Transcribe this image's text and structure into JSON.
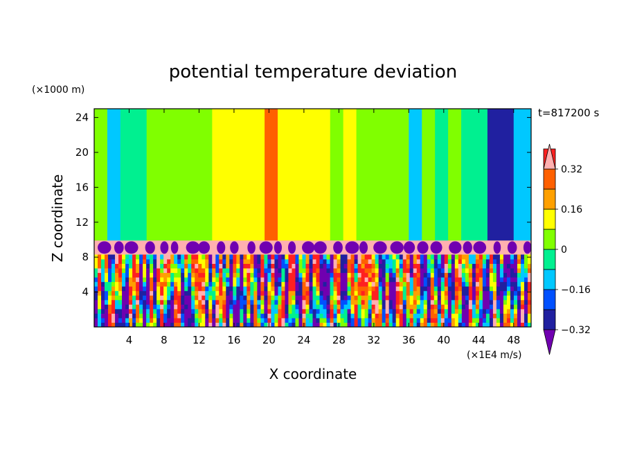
{
  "chart_data": {
    "type": "heatmap",
    "title": "potential temperature deviation",
    "xlabel": "X coordinate",
    "ylabel": "Z coordinate",
    "x_unit": "(×1E4 m/s)",
    "y_unit": "(×1000 m)",
    "time_label": "t=817200 s",
    "xlim": [
      0,
      50
    ],
    "ylim": [
      0,
      25
    ],
    "x_ticks": [
      4,
      8,
      12,
      16,
      20,
      24,
      28,
      32,
      36,
      40,
      44,
      48
    ],
    "y_ticks": [
      4,
      8,
      12,
      16,
      20,
      24
    ],
    "colorbar": {
      "levels": [
        -0.4,
        -0.32,
        -0.24,
        -0.16,
        -0.08,
        0,
        0.08,
        0.16,
        0.24,
        0.32,
        0.4
      ],
      "tick_labels": [
        "0.32",
        "0.16",
        "0",
        "−0.16",
        "−0.32"
      ],
      "tick_values": [
        0.32,
        0.16,
        0,
        -0.16,
        -0.32
      ],
      "colors": [
        "#7000b0",
        "#2020a0",
        "#0050ff",
        "#00c8ff",
        "#00f090",
        "#80ff00",
        "#ffff00",
        "#ffa000",
        "#ff6000",
        "#ff2020",
        "#ffb0b0"
      ],
      "extend": "both"
    },
    "upper_band_columns": {
      "x": [
        0,
        1.5,
        3,
        4.5,
        6,
        7.5,
        9,
        10.5,
        12,
        13.5,
        15,
        16.5,
        18,
        19.5,
        21,
        22.5,
        24,
        25.5,
        27,
        28.5,
        30,
        31.5,
        33,
        34.5,
        36,
        37.5,
        39,
        40.5,
        42,
        43.5,
        45,
        46.5,
        48,
        50
      ],
      "value": [
        0.02,
        -0.12,
        -0.02,
        -0.08,
        0.02,
        0.04,
        0.06,
        0.02,
        0.06,
        0.1,
        0.08,
        0.1,
        0.14,
        0.24,
        0.12,
        0.14,
        0.12,
        0.1,
        0.06,
        0.1,
        0.02,
        0.06,
        0.02,
        0.0,
        -0.1,
        0.02,
        -0.02,
        0.02,
        -0.04,
        -0.08,
        -0.3,
        -0.26,
        -0.12,
        -0.12
      ]
    },
    "inversion_layer": {
      "z_bottom": 8.3,
      "z_top": 9.9,
      "value": 0.42
    }
  }
}
